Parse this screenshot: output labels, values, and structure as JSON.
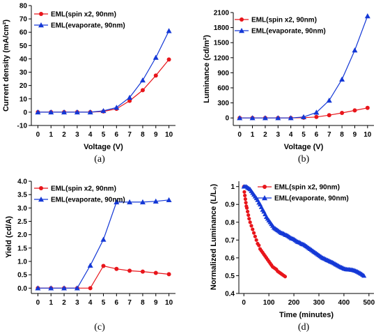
{
  "colors": {
    "spin": "#e8151b",
    "evap": "#1438d6"
  },
  "chart_data": [
    {
      "type": "line",
      "panel_label": "(a)",
      "xlabel": "Voltage (V)",
      "ylabel": "Current density (mA/cm²)",
      "xlim": [
        -0.5,
        10.5
      ],
      "ylim": [
        -10,
        80
      ],
      "xticks": [
        0,
        1,
        2,
        3,
        4,
        5,
        6,
        7,
        8,
        9,
        10
      ],
      "yticks": [
        -10,
        0,
        10,
        20,
        30,
        40,
        50,
        60,
        70,
        80
      ],
      "legend_position": "top-left",
      "x": [
        0,
        1,
        2,
        3,
        4,
        5,
        6,
        7,
        8,
        9,
        10
      ],
      "series": [
        {
          "name": "EML(spin x2, 90nm)",
          "marker": "circle",
          "color": "#e8151b",
          "values": [
            0,
            0,
            0,
            0,
            0,
            0.5,
            2.5,
            8.5,
            16.5,
            27.5,
            39.5
          ]
        },
        {
          "name": "EML(evaporate, 90nm)",
          "marker": "triangle",
          "color": "#1438d6",
          "values": [
            0,
            0,
            0,
            0,
            0,
            1,
            3.5,
            11,
            24,
            41,
            61
          ]
        }
      ]
    },
    {
      "type": "line",
      "panel_label": "(b)",
      "xlabel": "Voltage (V)",
      "ylabel": "Luminance (cd/m²)",
      "xlim": [
        -0.5,
        10.5
      ],
      "ylim": [
        -150,
        2100
      ],
      "xticks": [
        0,
        1,
        2,
        3,
        4,
        5,
        6,
        7,
        8,
        9,
        10
      ],
      "yticks": [
        0,
        300,
        600,
        900,
        1200,
        1500,
        1800,
        2100
      ],
      "legend_position": "top-left",
      "x": [
        0,
        1,
        2,
        3,
        4,
        5,
        6,
        7,
        8,
        9,
        10
      ],
      "series": [
        {
          "name": "EML(spin x2, 90nm)",
          "marker": "circle",
          "color": "#e8151b",
          "values": [
            0,
            0,
            0,
            0,
            0,
            5,
            20,
            55,
            100,
            150,
            200
          ]
        },
        {
          "name": "EML(evaporate, 90nm)",
          "marker": "triangle",
          "color": "#1438d6",
          "values": [
            0,
            0,
            0,
            0,
            0,
            20,
            110,
            350,
            770,
            1350,
            2030
          ]
        }
      ]
    },
    {
      "type": "line",
      "panel_label": "(c)",
      "xlabel": "",
      "ylabel": "Yield (cd/A)",
      "xlim": [
        -0.5,
        10.5
      ],
      "ylim": [
        -0.2,
        4.0
      ],
      "xticks": [
        0,
        1,
        2,
        3,
        4,
        5,
        6,
        7,
        8,
        9,
        10
      ],
      "yticks": [
        0.0,
        0.5,
        1.0,
        1.5,
        2.0,
        2.5,
        3.0,
        3.5,
        4.0
      ],
      "yticklabels": [
        "0.0",
        "0.5",
        "1.0",
        "1.5",
        "2.0",
        "2.5",
        "3.0",
        "3.5",
        "4.0"
      ],
      "legend_position": "top-left",
      "x": [
        0,
        1,
        2,
        3,
        4,
        5,
        6,
        7,
        8,
        9,
        10
      ],
      "series": [
        {
          "name": "EML(spin x2, 90nm)",
          "marker": "circle",
          "color": "#e8151b",
          "values": [
            0,
            0,
            0,
            0,
            0,
            0.83,
            0.72,
            0.65,
            0.62,
            0.57,
            0.52
          ]
        },
        {
          "name": "EML(evaporate, 90nm)",
          "marker": "triangle",
          "color": "#1438d6",
          "values": [
            0,
            0,
            0,
            0,
            0.85,
            1.82,
            3.22,
            3.22,
            3.22,
            3.25,
            3.3
          ]
        }
      ]
    },
    {
      "type": "scatter",
      "panel_label": "(d)",
      "xlabel": "Time (minutes)",
      "ylabel": "Normalized Luminance (L/L₀)",
      "xlim": [
        -20,
        520
      ],
      "ylim": [
        0.4,
        1.03
      ],
      "xticks": [
        0,
        100,
        200,
        300,
        400,
        500
      ],
      "yticks": [
        0.4,
        0.5,
        0.6,
        0.7,
        0.8,
        0.9,
        1.0
      ],
      "legend_position": "top-right",
      "series": [
        {
          "name": "EML(spin x2,  90nm)",
          "marker": "circle",
          "color": "#e8151b",
          "x": [
            0,
            2,
            4,
            6,
            8,
            10,
            12,
            15,
            18,
            21,
            25,
            30,
            35,
            40,
            45,
            50,
            55,
            60,
            65,
            70,
            75,
            80,
            85,
            90,
            95,
            100,
            105,
            110,
            115,
            120,
            125,
            130,
            135,
            140,
            145,
            150,
            155,
            160,
            165
          ],
          "y": [
            1.0,
            0.97,
            0.95,
            0.93,
            0.91,
            0.89,
            0.88,
            0.86,
            0.84,
            0.82,
            0.8,
            0.78,
            0.76,
            0.74,
            0.72,
            0.7,
            0.68,
            0.67,
            0.65,
            0.64,
            0.63,
            0.62,
            0.61,
            0.6,
            0.59,
            0.58,
            0.57,
            0.56,
            0.55,
            0.545,
            0.54,
            0.535,
            0.525,
            0.52,
            0.515,
            0.51,
            0.505,
            0.5,
            0.495
          ]
        },
        {
          "name": "EML(evaporate, 90nm)",
          "marker": "triangle",
          "color": "#1438d6",
          "x": [
            0,
            5,
            10,
            15,
            20,
            25,
            30,
            35,
            40,
            45,
            50,
            55,
            60,
            65,
            70,
            75,
            80,
            85,
            90,
            95,
            100,
            105,
            110,
            115,
            120,
            125,
            130,
            135,
            140,
            145,
            150,
            155,
            160,
            165,
            170,
            175,
            180,
            185,
            190,
            195,
            200,
            205,
            210,
            215,
            220,
            225,
            230,
            235,
            240,
            245,
            250,
            255,
            260,
            265,
            270,
            275,
            280,
            285,
            290,
            295,
            300,
            305,
            310,
            315,
            320,
            325,
            330,
            335,
            340,
            345,
            350,
            355,
            360,
            365,
            370,
            375,
            380,
            385,
            390,
            395,
            400,
            405,
            410,
            415,
            420,
            425,
            430,
            435,
            440,
            445,
            450,
            455,
            460,
            465,
            470,
            475,
            480
          ],
          "y": [
            1.0,
            1.0,
            1.0,
            0.995,
            0.99,
            0.985,
            0.975,
            0.965,
            0.955,
            0.945,
            0.935,
            0.925,
            0.91,
            0.9,
            0.885,
            0.87,
            0.86,
            0.845,
            0.83,
            0.82,
            0.81,
            0.8,
            0.79,
            0.78,
            0.77,
            0.765,
            0.76,
            0.755,
            0.75,
            0.745,
            0.74,
            0.738,
            0.735,
            0.73,
            0.728,
            0.725,
            0.72,
            0.715,
            0.71,
            0.708,
            0.705,
            0.7,
            0.695,
            0.69,
            0.688,
            0.685,
            0.68,
            0.677,
            0.675,
            0.67,
            0.665,
            0.66,
            0.655,
            0.65,
            0.645,
            0.64,
            0.635,
            0.63,
            0.625,
            0.62,
            0.615,
            0.61,
            0.605,
            0.6,
            0.597,
            0.594,
            0.59,
            0.587,
            0.584,
            0.58,
            0.577,
            0.574,
            0.57,
            0.566,
            0.562,
            0.558,
            0.554,
            0.55,
            0.547,
            0.544,
            0.54,
            0.538,
            0.536,
            0.535,
            0.535,
            0.534,
            0.533,
            0.532,
            0.53,
            0.528,
            0.525,
            0.522,
            0.518,
            0.514,
            0.51,
            0.505,
            0.5
          ]
        }
      ]
    }
  ]
}
